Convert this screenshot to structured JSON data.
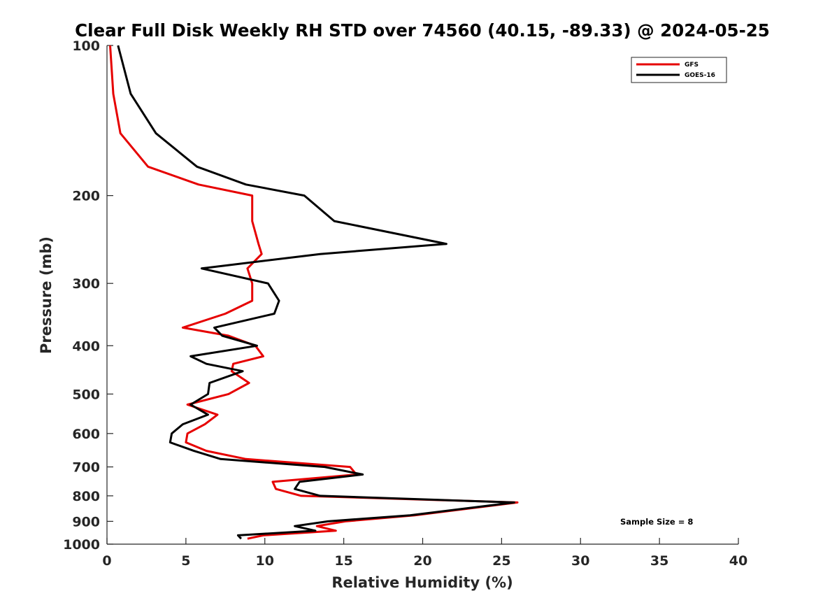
{
  "chart_data": {
    "type": "line",
    "title": "Clear Full Disk Weekly RH STD over 74560 (40.15, -89.33) @ 2024-05-25",
    "xlabel": "Relative Humidity (%)",
    "ylabel": "Pressure (mb)",
    "xlim": [
      0,
      40
    ],
    "ylim": [
      100,
      1000
    ],
    "y_scale": "log",
    "y_reversed": true,
    "xticks": [
      "0",
      "5",
      "10",
      "15",
      "20",
      "25",
      "30",
      "35",
      "40"
    ],
    "yticks": [
      "100",
      "200",
      "300",
      "400",
      "500",
      "600",
      "700",
      "800",
      "900",
      "1000"
    ],
    "grid": false,
    "legend_position": "top-right",
    "annotation": "Sample Size = 8",
    "series": [
      {
        "name": "GFS",
        "color": "#e60000",
        "points": [
          [
            0.2,
            100
          ],
          [
            0.4,
            125
          ],
          [
            0.85,
            150
          ],
          [
            2.6,
            175
          ],
          [
            5.8,
            190
          ],
          [
            9.2,
            200
          ],
          [
            9.2,
            225
          ],
          [
            9.6,
            250
          ],
          [
            9.8,
            262
          ],
          [
            8.9,
            280
          ],
          [
            9.2,
            300
          ],
          [
            9.2,
            325
          ],
          [
            7.5,
            345
          ],
          [
            4.8,
            368
          ],
          [
            7.7,
            382
          ],
          [
            9.4,
            400
          ],
          [
            9.9,
            420
          ],
          [
            8.0,
            435
          ],
          [
            7.9,
            450
          ],
          [
            9.0,
            475
          ],
          [
            7.7,
            500
          ],
          [
            5.1,
            525
          ],
          [
            7.0,
            550
          ],
          [
            6.2,
            575
          ],
          [
            5.1,
            600
          ],
          [
            5.0,
            625
          ],
          [
            6.3,
            650
          ],
          [
            8.8,
            675
          ],
          [
            15.4,
            700
          ],
          [
            15.8,
            725
          ],
          [
            10.5,
            750
          ],
          [
            10.7,
            775
          ],
          [
            12.3,
            800
          ],
          [
            26.0,
            825
          ],
          [
            19.5,
            875
          ],
          [
            15.1,
            900
          ],
          [
            13.3,
            920
          ],
          [
            14.5,
            940
          ],
          [
            9.9,
            960
          ],
          [
            8.9,
            975
          ]
        ]
      },
      {
        "name": "GOES-16",
        "color": "#000000",
        "points": [
          [
            0.7,
            100
          ],
          [
            1.5,
            125
          ],
          [
            3.1,
            150
          ],
          [
            5.7,
            175
          ],
          [
            8.8,
            190
          ],
          [
            12.5,
            200
          ],
          [
            14.4,
            225
          ],
          [
            21.5,
            250
          ],
          [
            13.5,
            262
          ],
          [
            6.0,
            280
          ],
          [
            10.2,
            300
          ],
          [
            10.9,
            325
          ],
          [
            10.6,
            345
          ],
          [
            6.8,
            368
          ],
          [
            7.3,
            382
          ],
          [
            9.5,
            400
          ],
          [
            5.3,
            420
          ],
          [
            6.3,
            435
          ],
          [
            8.6,
            450
          ],
          [
            6.5,
            475
          ],
          [
            6.4,
            500
          ],
          [
            5.3,
            525
          ],
          [
            6.4,
            550
          ],
          [
            4.8,
            575
          ],
          [
            4.1,
            600
          ],
          [
            4.0,
            625
          ],
          [
            5.5,
            650
          ],
          [
            7.2,
            675
          ],
          [
            13.8,
            700
          ],
          [
            16.2,
            725
          ],
          [
            12.2,
            750
          ],
          [
            11.9,
            775
          ],
          [
            13.5,
            800
          ],
          [
            25.8,
            825
          ],
          [
            19.2,
            875
          ],
          [
            14.0,
            900
          ],
          [
            11.9,
            920
          ],
          [
            13.2,
            940
          ],
          [
            8.3,
            960
          ],
          [
            8.5,
            975
          ]
        ]
      }
    ]
  }
}
